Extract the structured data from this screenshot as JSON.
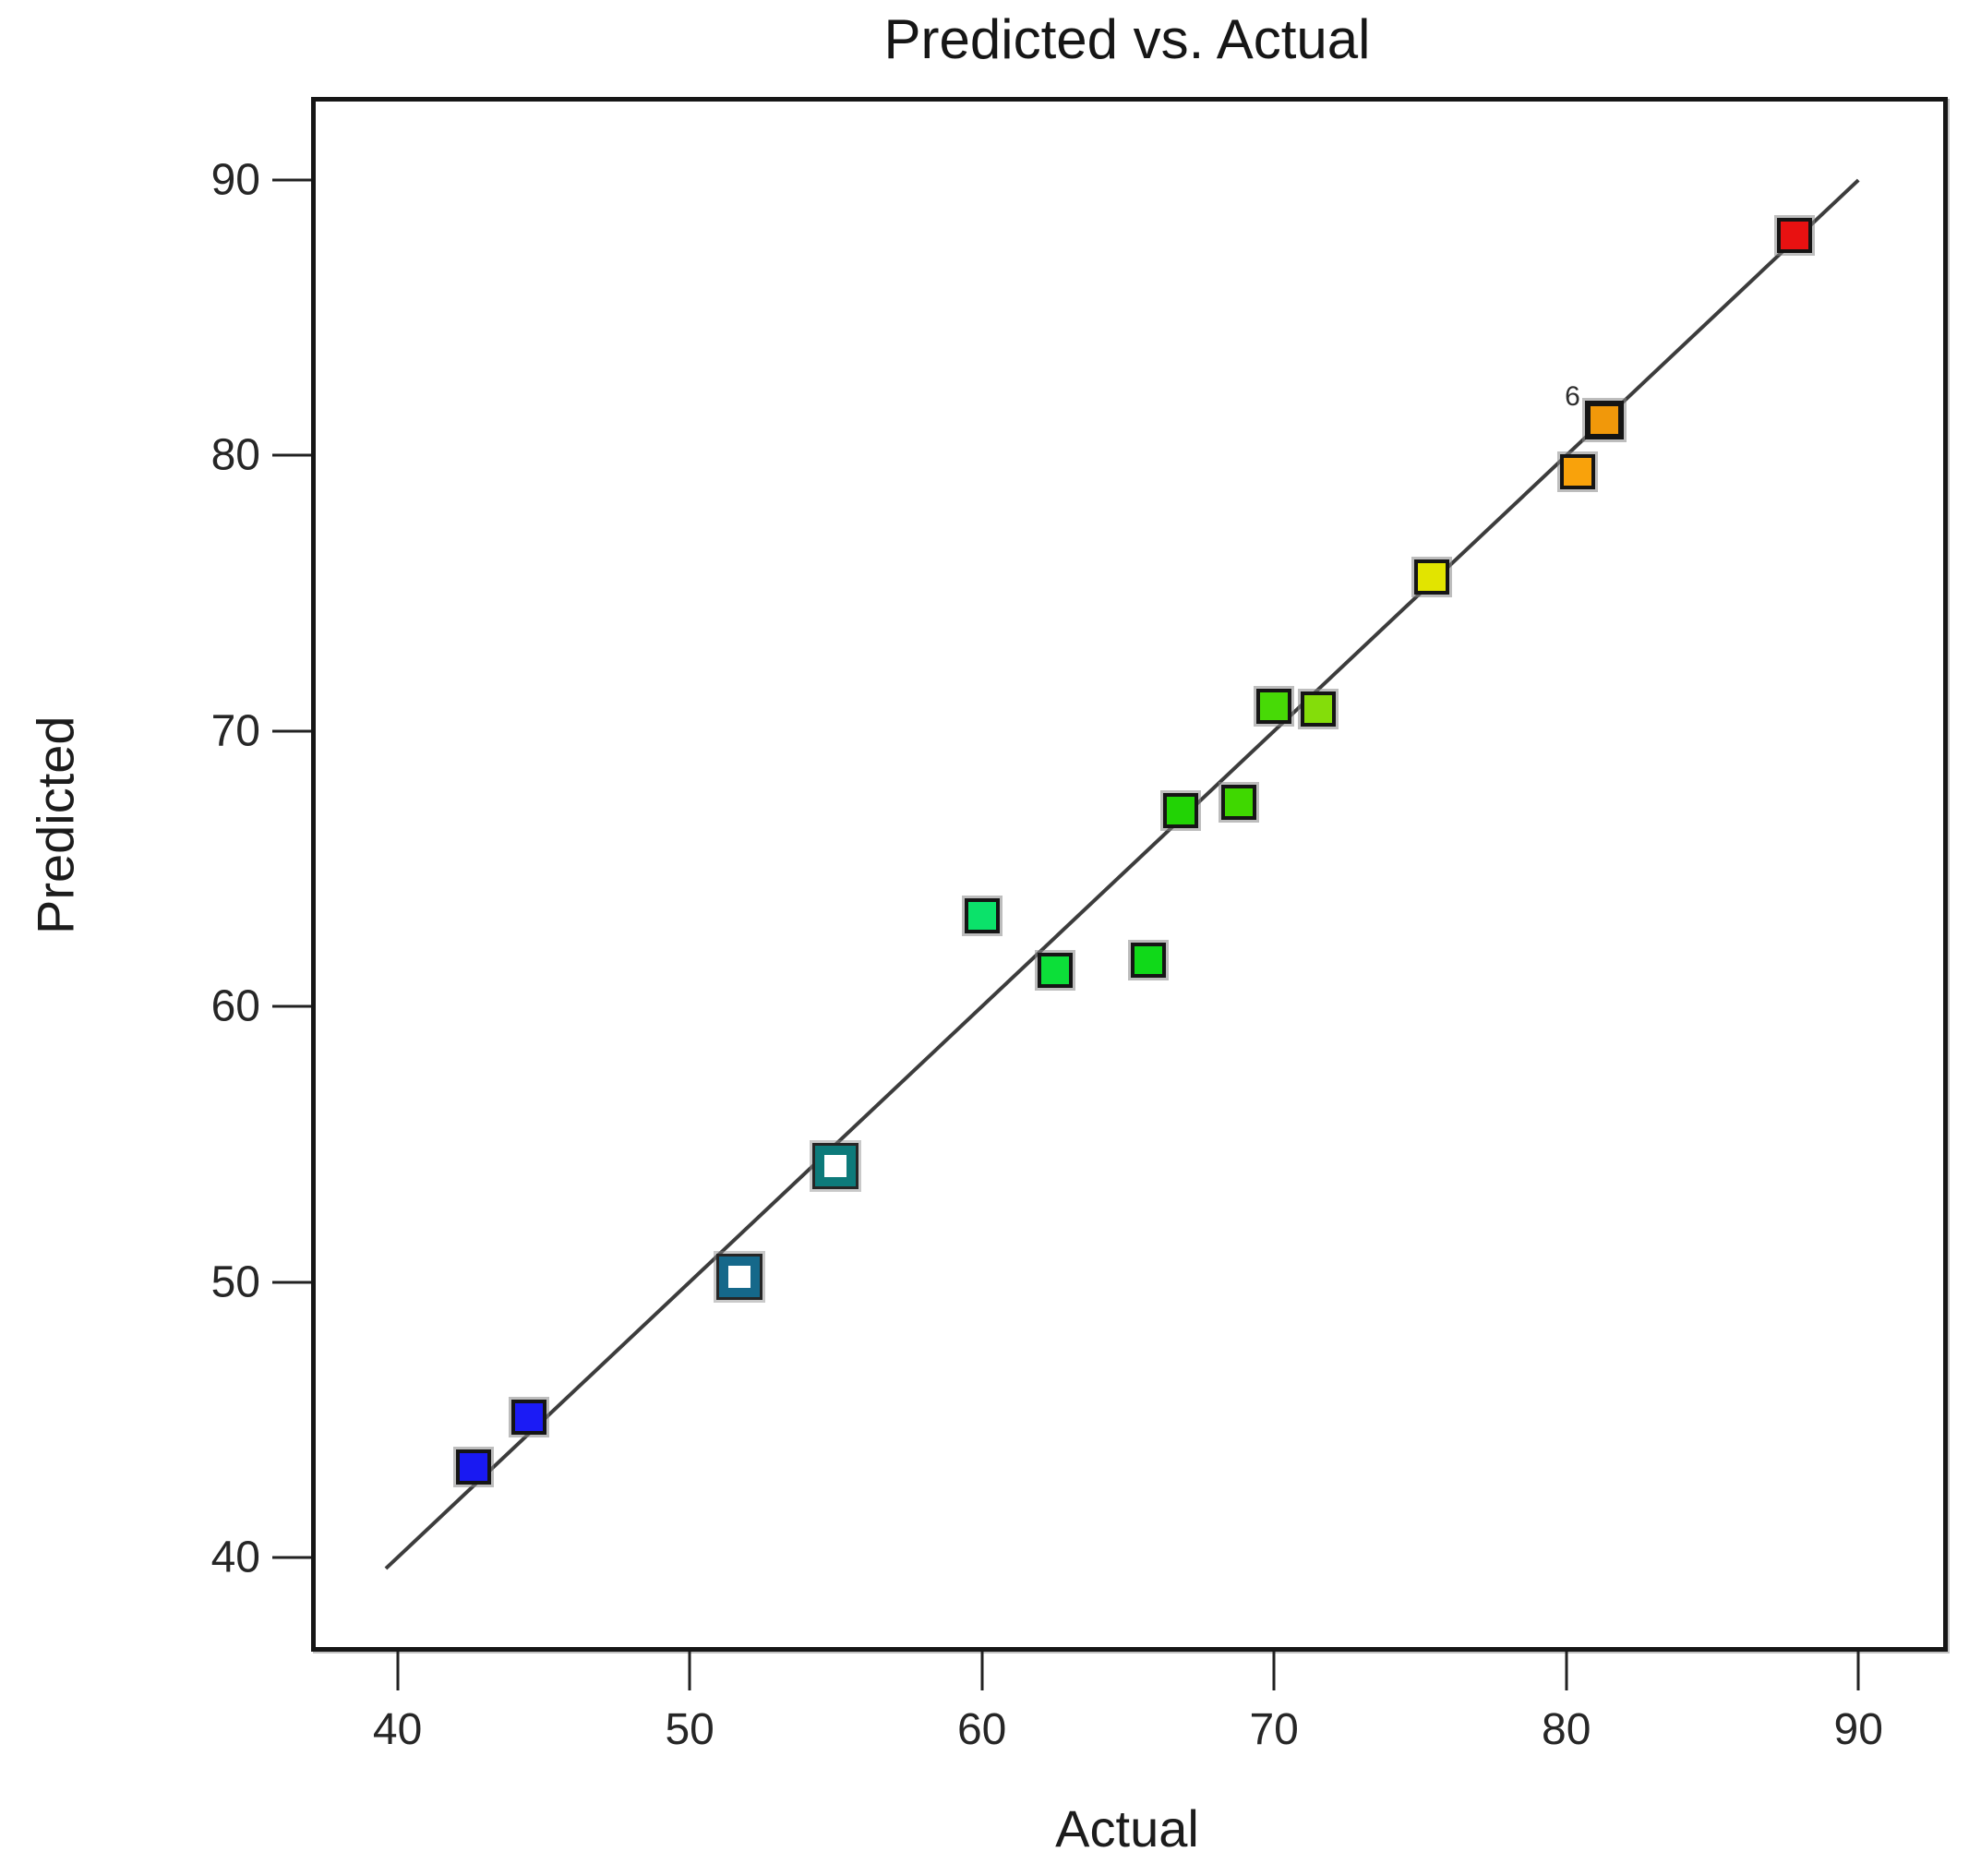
{
  "chart_data": {
    "type": "scatter",
    "title": "Predicted vs. Actual",
    "xlabel": "Actual",
    "ylabel": "Predicted",
    "xlim": [
      37.2,
      92.9
    ],
    "ylim": [
      36.75,
      92.85
    ],
    "xticks": [
      40,
      50,
      60,
      70,
      80,
      90
    ],
    "yticks": [
      40,
      50,
      60,
      70,
      80,
      90
    ],
    "grid": false,
    "legend": "none",
    "reference_line": {
      "x1": 39.6,
      "y1": 39.6,
      "x2": 90.0,
      "y2": 90.0,
      "color": "#3c3c3c",
      "width": 4
    },
    "series": [
      {
        "name": "design-points",
        "marker": "square",
        "points": [
          {
            "x": 42.6,
            "y": 43.3,
            "color": "#1919f2",
            "style": "filled"
          },
          {
            "x": 44.5,
            "y": 45.1,
            "color": "#1b1bf5",
            "style": "filled"
          },
          {
            "x": 51.7,
            "y": 50.2,
            "color": "#15688a",
            "style": "open"
          },
          {
            "x": 55.0,
            "y": 54.2,
            "color": "#0d7a7a",
            "style": "open"
          },
          {
            "x": 60.0,
            "y": 63.3,
            "color": "#0be26a",
            "style": "filled"
          },
          {
            "x": 62.5,
            "y": 61.3,
            "color": "#0cdf39",
            "style": "filled"
          },
          {
            "x": 65.7,
            "y": 61.7,
            "color": "#10d919",
            "style": "filled"
          },
          {
            "x": 66.8,
            "y": 67.1,
            "color": "#22d305",
            "style": "filled"
          },
          {
            "x": 68.8,
            "y": 67.4,
            "color": "#3fd800",
            "style": "filled"
          },
          {
            "x": 70.0,
            "y": 70.9,
            "color": "#47da06",
            "style": "filled"
          },
          {
            "x": 71.5,
            "y": 70.8,
            "color": "#84dd0a",
            "style": "filled"
          },
          {
            "x": 75.4,
            "y": 75.6,
            "color": "#e2e400",
            "style": "filled"
          },
          {
            "x": 80.4,
            "y": 79.4,
            "color": "#f9a20b",
            "style": "filled"
          },
          {
            "x": 81.3,
            "y": 81.3,
            "color": "#f1980a",
            "style": "filled",
            "label": "6",
            "emphasis": true
          },
          {
            "x": 87.8,
            "y": 88.0,
            "color": "#e81111",
            "style": "filled"
          }
        ]
      }
    ]
  }
}
